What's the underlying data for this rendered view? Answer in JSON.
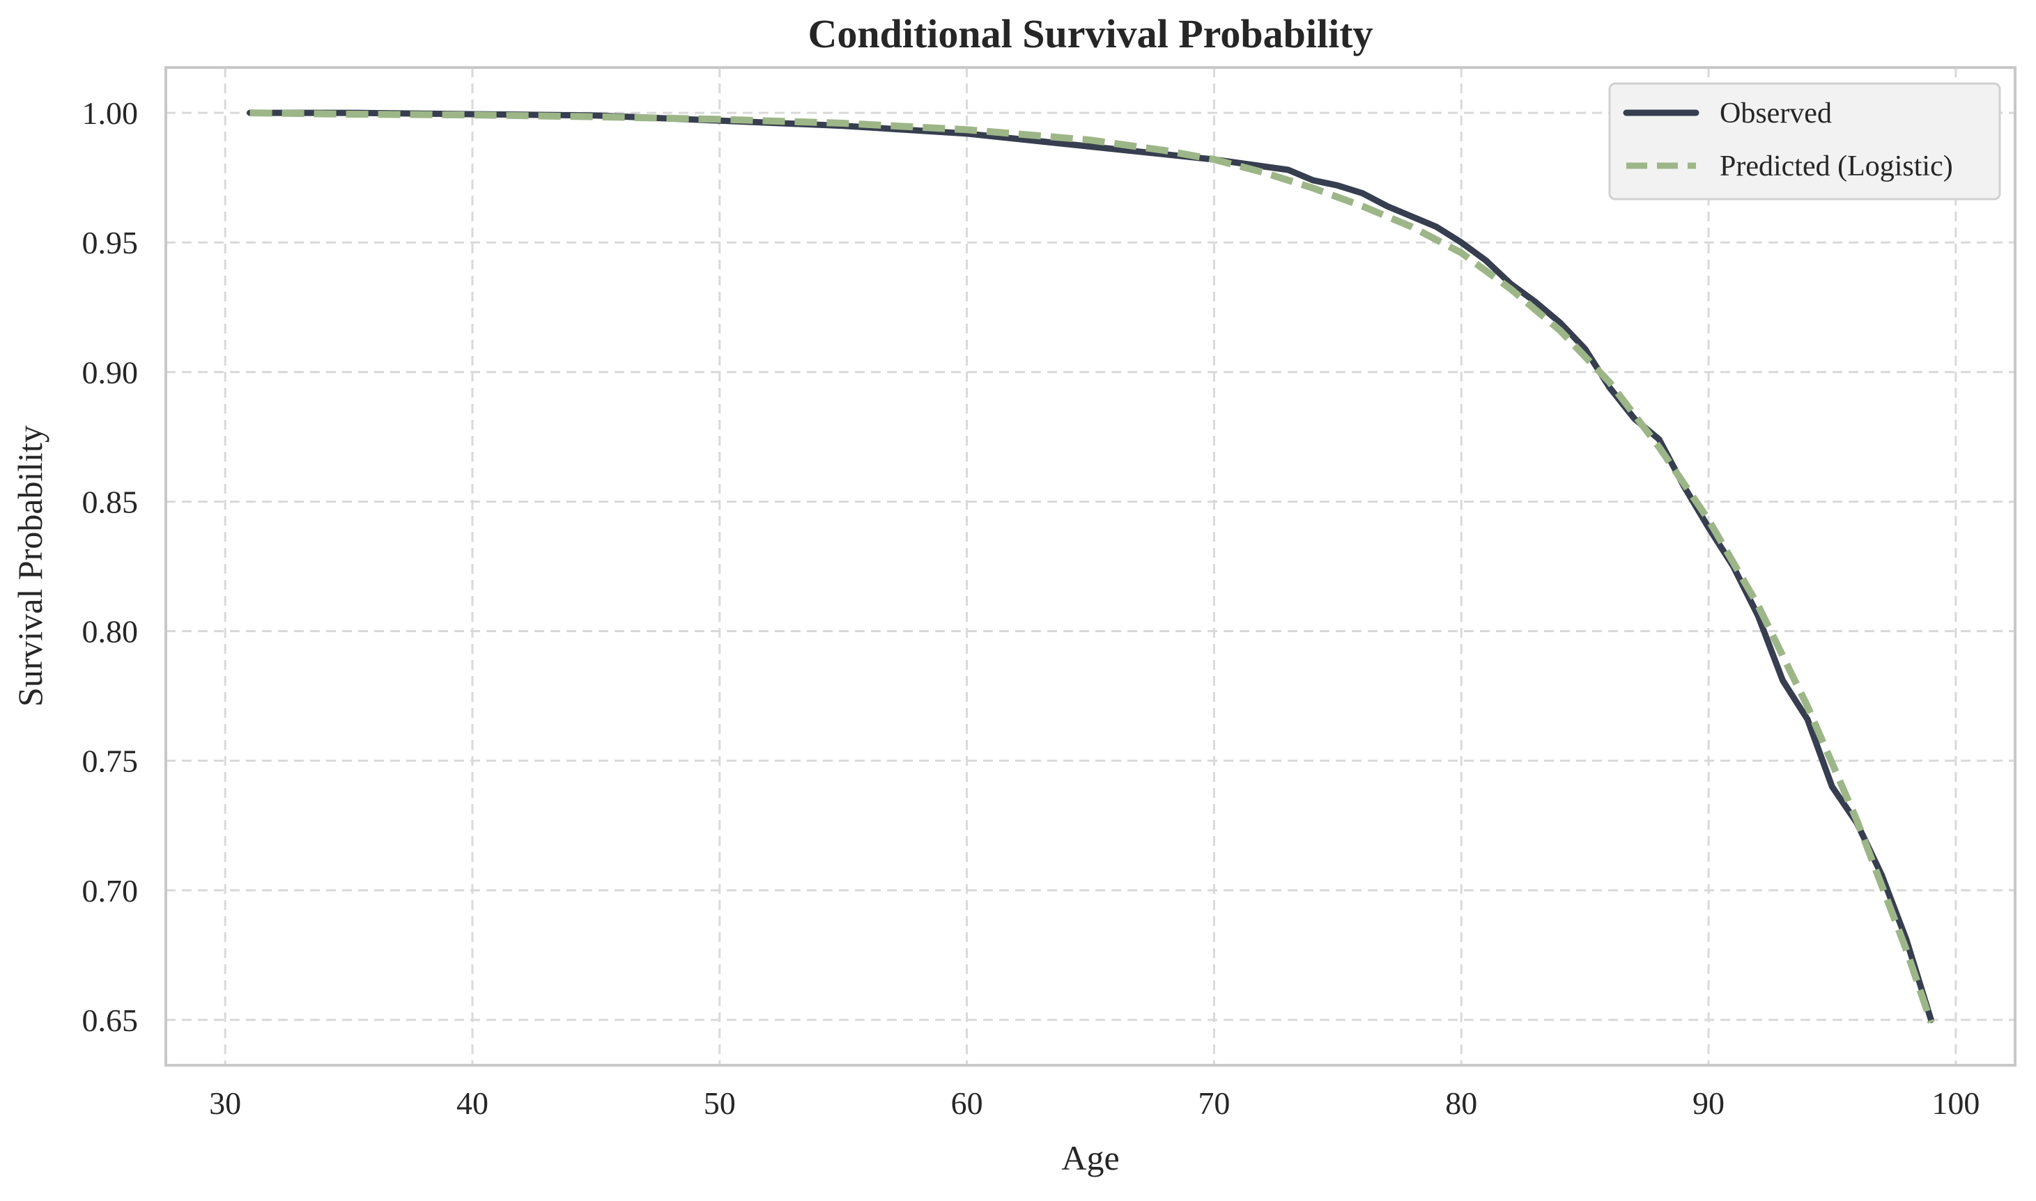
{
  "chart_data": {
    "type": "line",
    "title": "Conditional Survival Probability",
    "xlabel": "Age",
    "ylabel": "Survival Probability",
    "xlim": [
      27.6,
      102.4
    ],
    "ylim": [
      0.6325,
      1.0175
    ],
    "xticks": [
      30,
      40,
      50,
      60,
      70,
      80,
      90,
      100
    ],
    "xtick_labels": [
      "30",
      "40",
      "50",
      "60",
      "70",
      "80",
      "90",
      "100"
    ],
    "yticks": [
      0.65,
      0.7,
      0.75,
      0.8,
      0.85,
      0.9,
      0.95,
      1.0
    ],
    "ytick_labels": [
      "0.65",
      "0.70",
      "0.75",
      "0.80",
      "0.85",
      "0.90",
      "0.95",
      "1.00"
    ],
    "grid": true,
    "legend_position": "top-right",
    "colors": {
      "observed": "#363e4f",
      "predicted": "#9db688",
      "grid": "#d9d9d9",
      "frame": "#c8c8c8",
      "text": "#262626",
      "legend_bg": "#f2f2f2",
      "legend_border": "#d0d0d0"
    },
    "series": [
      {
        "name": "Observed",
        "style": "solid",
        "x": [
          31,
          35,
          40,
          45,
          50,
          55,
          60,
          65,
          70,
          73,
          74,
          75,
          76,
          77,
          78,
          79,
          80,
          81,
          82,
          83,
          84,
          85,
          86,
          87,
          88,
          89,
          90,
          91,
          92,
          93,
          94,
          95,
          96,
          97,
          98,
          99
        ],
        "y": [
          1.0,
          1.0,
          0.9995,
          0.999,
          0.997,
          0.995,
          0.992,
          0.987,
          0.982,
          0.978,
          0.974,
          0.972,
          0.969,
          0.964,
          0.96,
          0.956,
          0.95,
          0.943,
          0.934,
          0.927,
          0.919,
          0.909,
          0.894,
          0.882,
          0.874,
          0.856,
          0.84,
          0.825,
          0.806,
          0.781,
          0.766,
          0.74,
          0.726,
          0.706,
          0.681,
          0.65
        ]
      },
      {
        "name": "Predicted (Logistic)",
        "style": "dashed",
        "x": [
          31,
          35,
          40,
          45,
          50,
          55,
          60,
          65,
          68,
          70,
          72,
          74,
          76,
          78,
          80,
          82,
          84,
          86,
          88,
          90,
          92,
          94,
          96,
          98,
          99
        ],
        "y": [
          1.0,
          0.9995,
          0.9992,
          0.9985,
          0.9975,
          0.996,
          0.9935,
          0.9895,
          0.9855,
          0.982,
          0.977,
          0.971,
          0.964,
          0.956,
          0.946,
          0.932,
          0.916,
          0.896,
          0.871,
          0.843,
          0.81,
          0.771,
          0.727,
          0.677,
          0.649
        ]
      }
    ]
  }
}
